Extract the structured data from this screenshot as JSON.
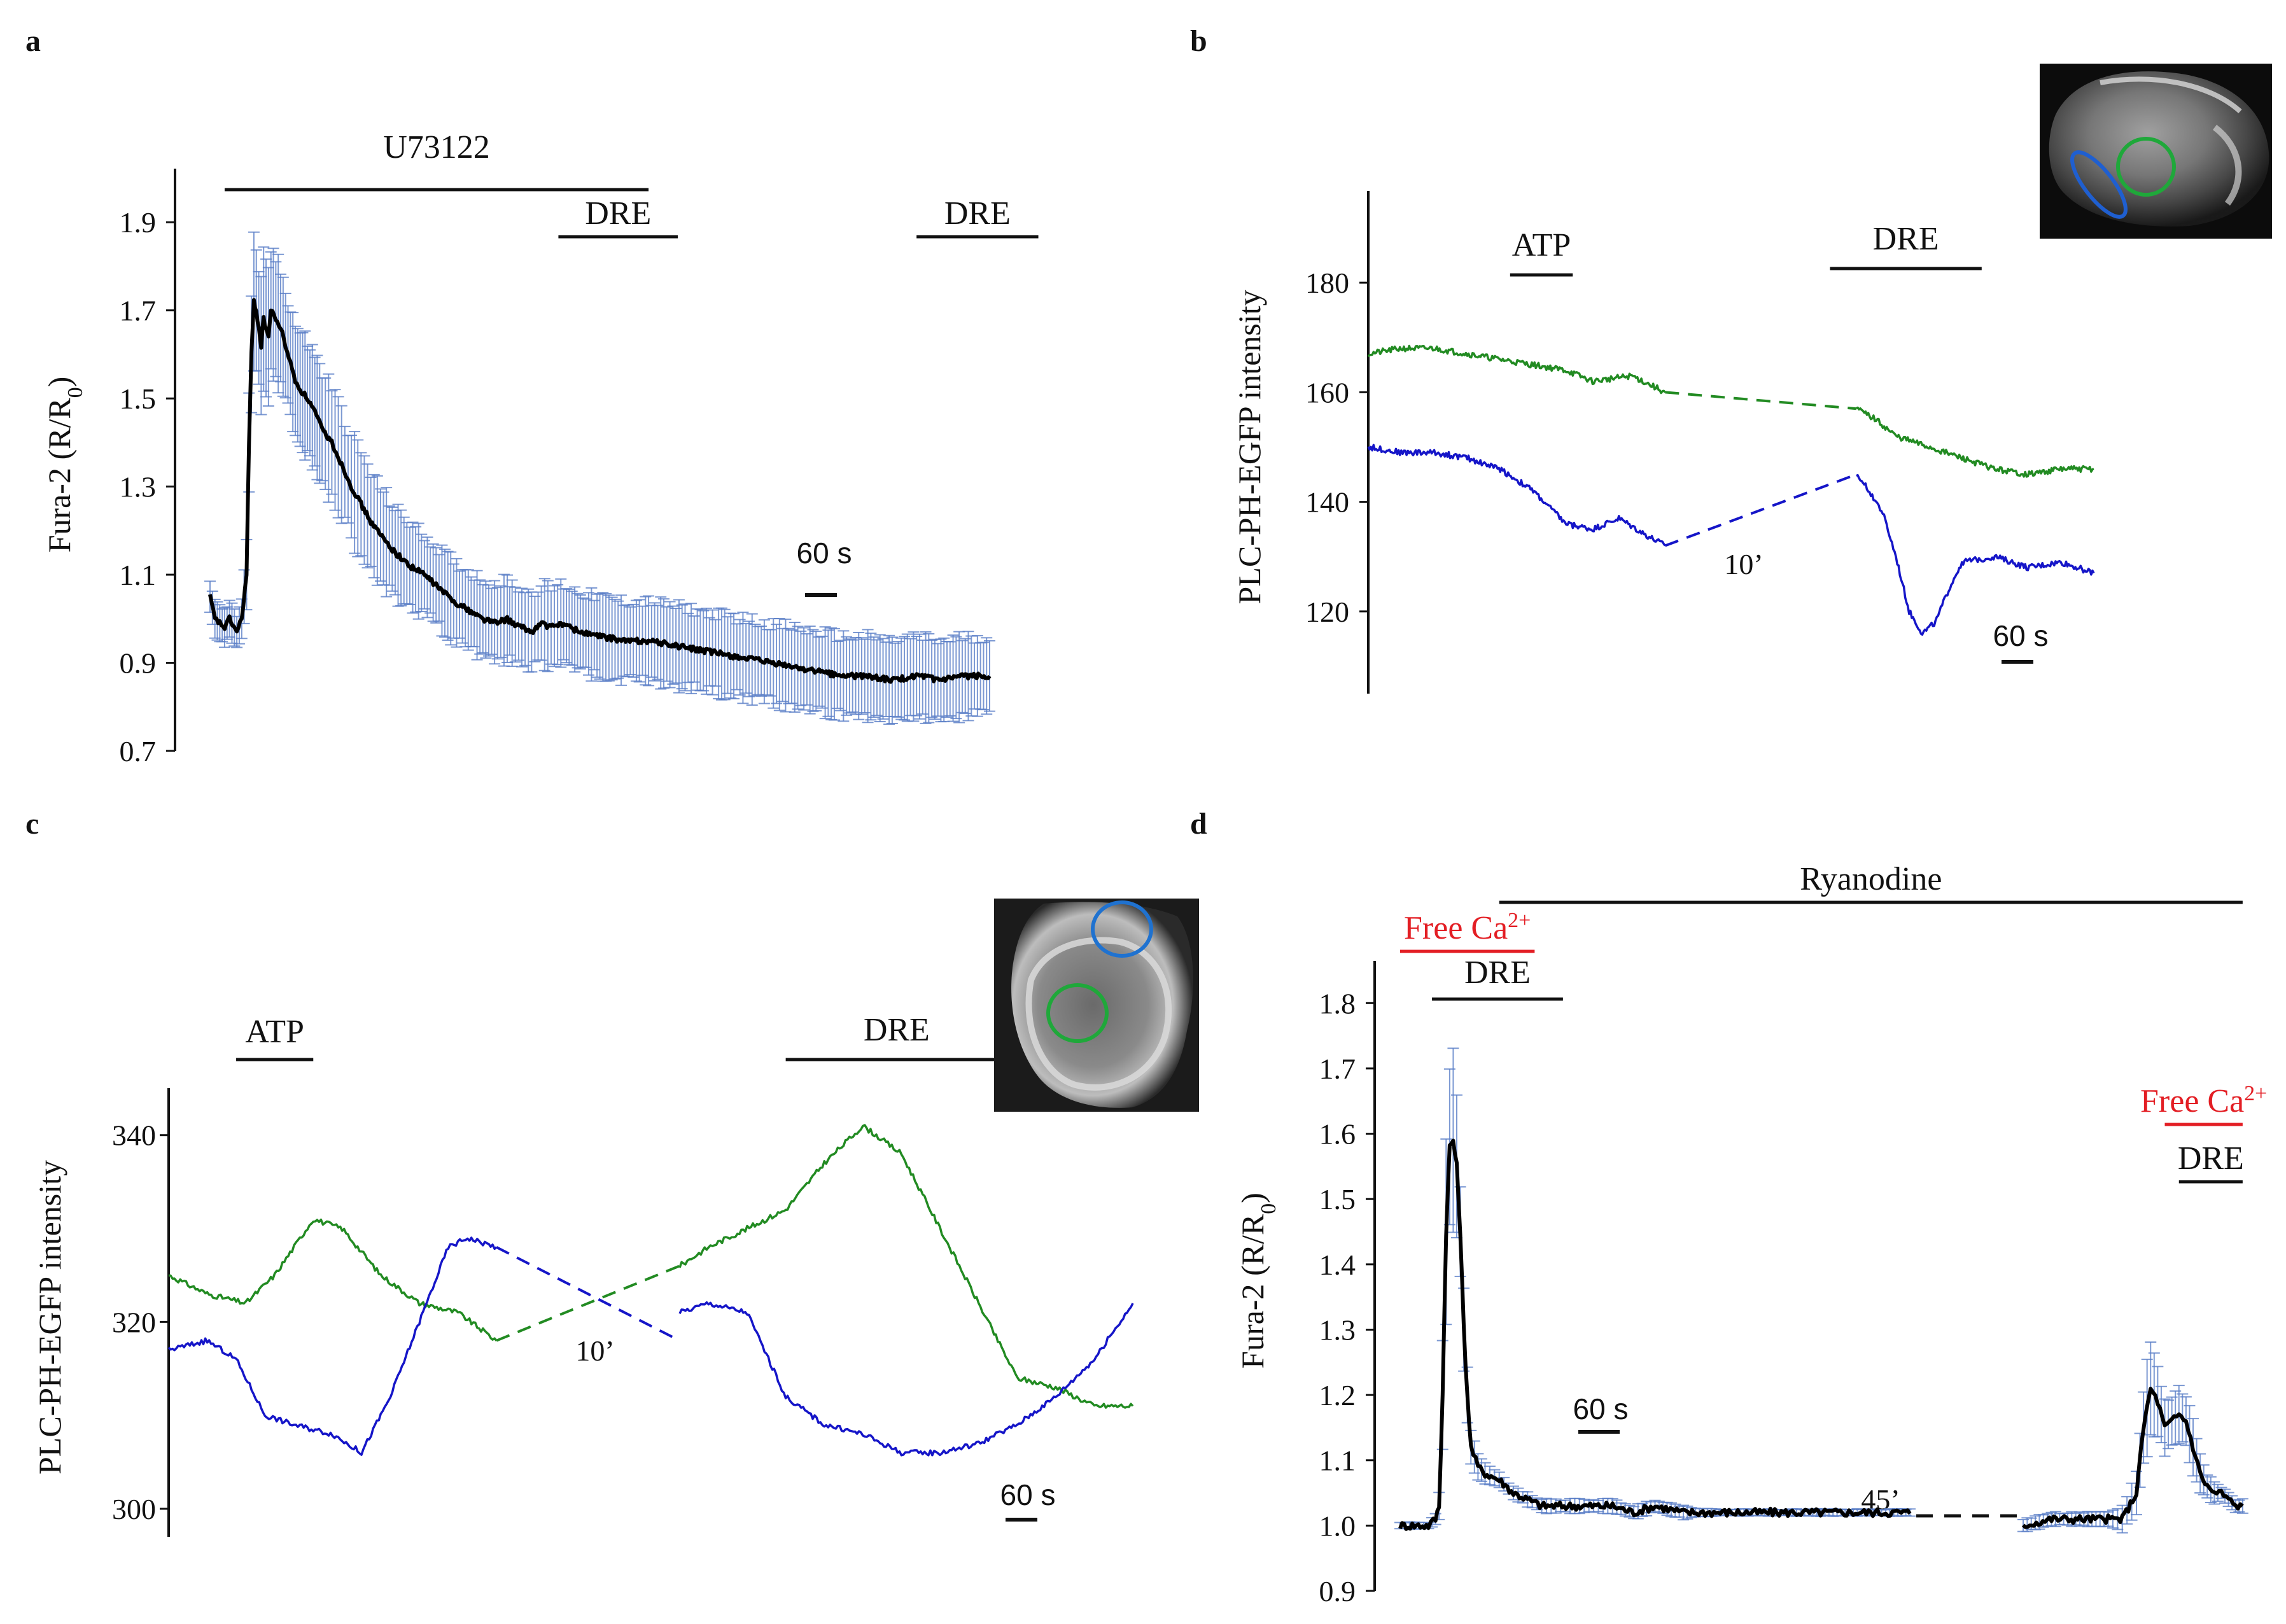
{
  "figure": {
    "panels": [
      "a",
      "b",
      "c",
      "d"
    ]
  },
  "chart_data": [
    {
      "panel": "a",
      "type": "line",
      "ylabel": "Fura-2 (R/R0)",
      "ylabel_main": "Fura-2 (R/R",
      "ylabel_sub": "0",
      "ylabel_close": ")",
      "yticks": [
        "1.9",
        "1.7",
        "1.5",
        "1.3",
        "1.1",
        "0.9",
        "0.7"
      ],
      "ylim": [
        0.7,
        2.0
      ],
      "x_seconds_range": [
        0,
        1600
      ],
      "scale_bar_label": "60 s",
      "drug_bars": [
        {
          "label": "U73122",
          "start": 30,
          "end": 900
        },
        {
          "label": "DRE",
          "start": 715,
          "end": 960
        },
        {
          "label": "DRE",
          "start": 1450,
          "end": 1700
        }
      ],
      "series": [
        {
          "name": "mean",
          "color": "#000000",
          "error_color": "#5b7fc7",
          "x": [
            0,
            10,
            20,
            30,
            40,
            55,
            65,
            75,
            80,
            85,
            90,
            95,
            100,
            105,
            110,
            115,
            120,
            125,
            135,
            145,
            155,
            165,
            175,
            185,
            200,
            215,
            230,
            250,
            270,
            290,
            310,
            330,
            350,
            380,
            410,
            440,
            470,
            500,
            530,
            560,
            590,
            610,
            620,
            640,
            660,
            680,
            700,
            720,
            760,
            800,
            850,
            900,
            950,
            1000,
            1050,
            1100,
            1150,
            1200,
            1250,
            1300,
            1350,
            1400,
            1450,
            1500,
            1550,
            1600
          ],
          "values": [
            1.05,
            1.0,
            0.99,
            0.98,
            1.0,
            0.97,
            1.0,
            1.1,
            1.4,
            1.6,
            1.72,
            1.7,
            1.66,
            1.62,
            1.68,
            1.66,
            1.64,
            1.7,
            1.68,
            1.66,
            1.62,
            1.58,
            1.54,
            1.52,
            1.5,
            1.47,
            1.43,
            1.4,
            1.35,
            1.3,
            1.26,
            1.22,
            1.19,
            1.15,
            1.12,
            1.1,
            1.07,
            1.04,
            1.02,
            1.0,
            0.99,
            1.0,
            0.99,
            0.98,
            0.97,
            0.99,
            0.98,
            0.99,
            0.97,
            0.96,
            0.95,
            0.95,
            0.94,
            0.93,
            0.92,
            0.91,
            0.9,
            0.89,
            0.88,
            0.87,
            0.87,
            0.86,
            0.87,
            0.86,
            0.87,
            0.87
          ],
          "errors": [
            0.04,
            0.04,
            0.04,
            0.04,
            0.04,
            0.04,
            0.05,
            0.08,
            0.12,
            0.13,
            0.14,
            0.14,
            0.14,
            0.14,
            0.14,
            0.14,
            0.14,
            0.14,
            0.14,
            0.13,
            0.13,
            0.13,
            0.13,
            0.13,
            0.13,
            0.13,
            0.13,
            0.13,
            0.12,
            0.12,
            0.12,
            0.11,
            0.11,
            0.1,
            0.1,
            0.09,
            0.09,
            0.09,
            0.09,
            0.09,
            0.09,
            0.09,
            0.09,
            0.09,
            0.09,
            0.09,
            0.09,
            0.09,
            0.09,
            0.09,
            0.09,
            0.09,
            0.09,
            0.09,
            0.09,
            0.09,
            0.09,
            0.09,
            0.09,
            0.09,
            0.09,
            0.09,
            0.09,
            0.09,
            0.09,
            0.09
          ]
        }
      ]
    },
    {
      "panel": "b",
      "type": "line",
      "ylabel": "PLC-PH-EGFP  intensity",
      "yticks": [
        "180",
        "160",
        "140",
        "120"
      ],
      "ylim": [
        105,
        195
      ],
      "x_seconds_range": [
        0,
        1000
      ],
      "scale_bar_label": "60 s",
      "gap_label": "10’",
      "drug_bars": [
        {
          "label": "ATP",
          "start": 215,
          "end": 310
        },
        {
          "label": "DRE",
          "start": 700,
          "end": 930
        }
      ],
      "series": [
        {
          "name": "green ROI",
          "color": "#228b22",
          "segments": [
            {
              "x": [
                0,
                50,
                100,
                150,
                200,
                250,
                300,
                340,
                400,
                450
              ],
              "y": [
                167,
                168,
                168,
                167,
                166,
                165,
                164,
                162,
                163,
                160
              ]
            },
            {
              "x": [
                740,
                770,
                800,
                850,
                900,
                950,
                1000,
                1050,
                1100
              ],
              "y": [
                157,
                155,
                152,
                150,
                148,
                146,
                145,
                146,
                146
              ]
            }
          ],
          "gap": {
            "x": [
              450,
              740
            ],
            "y": [
              160,
              157
            ]
          }
        },
        {
          "name": "blue ROI",
          "color": "#1515c8",
          "segments": [
            {
              "x": [
                0,
                50,
                100,
                150,
                200,
                250,
                300,
                340,
                380,
                420,
                450
              ],
              "y": [
                150,
                149,
                149,
                148,
                146,
                142,
                136,
                135,
                137,
                134,
                132
              ]
            },
            {
              "x": [
                740,
                760,
                780,
                800,
                820,
                840,
                860,
                880,
                900,
                950,
                1000,
                1050,
                1100
              ],
              "y": [
                145,
                142,
                138,
                130,
                120,
                116,
                118,
                124,
                129,
                130,
                128,
                129,
                127
              ]
            }
          ],
          "gap": {
            "x": [
              450,
              740
            ],
            "y": [
              132,
              145
            ]
          }
        }
      ]
    },
    {
      "panel": "c",
      "type": "line",
      "ylabel": "PLC-PH-EGFP  intensity",
      "yticks": [
        "340",
        "320",
        "300"
      ],
      "ylim": [
        297,
        344
      ],
      "x_seconds_range": [
        0,
        1000
      ],
      "scale_bar_label": "60 s",
      "gap_label": "10’",
      "drug_bars": [
        {
          "label": "ATP",
          "start": 70,
          "end": 150
        },
        {
          "label": "DRE",
          "start": 640,
          "end": 870
        }
      ],
      "series": [
        {
          "name": "green ROI",
          "color": "#228b22",
          "segments": [
            {
              "x": [
                0,
                40,
                80,
                110,
                150,
                180,
                220,
                260,
                300,
                340
              ],
              "y": [
                325,
                323,
                322,
                325,
                331,
                330,
                325,
                322,
                321,
                318
              ]
            },
            {
              "x": [
                530,
                560,
                600,
                640,
                680,
                720,
                760,
                800,
                840,
                880,
                920,
                960,
                1000
              ],
              "y": [
                326,
                328,
                330,
                332,
                337,
                341,
                338,
                330,
                322,
                314,
                313,
                311,
                311
              ]
            }
          ],
          "gap": {
            "x": [
              340,
              530
            ],
            "y": [
              318,
              326
            ]
          }
        },
        {
          "name": "blue ROI",
          "color": "#1515c8",
          "segments": [
            {
              "x": [
                0,
                40,
                70,
                100,
                130,
                170,
                200,
                230,
                260,
                290,
                310,
                340
              ],
              "y": [
                317,
                318,
                316,
                310,
                309,
                308,
                306,
                312,
                320,
                328,
                329,
                328
              ]
            },
            {
              "x": [
                530,
                560,
                600,
                640,
                680,
                720,
                760,
                800,
                840,
                880,
                920,
                960,
                1000
              ],
              "y": [
                321,
                322,
                321,
                312,
                309,
                308,
                306,
                306,
                307,
                309,
                312,
                316,
                322
              ]
            }
          ],
          "gap": {
            "x": [
              340,
              530
            ],
            "y": [
              328,
              318
            ]
          }
        }
      ]
    },
    {
      "panel": "d",
      "type": "line",
      "ylabel": "Fura-2 (R/R0)",
      "ylabel_main": "Fura-2 (R/R",
      "ylabel_sub": "0",
      "ylabel_close": ")",
      "yticks": [
        "1.8",
        "1.7",
        "1.6",
        "1.5",
        "1.4",
        "1.3",
        "1.2",
        "1.1",
        "1.0",
        "0.9"
      ],
      "ylim": [
        0.9,
        1.85
      ],
      "x_seconds_range": [
        0,
        1200
      ],
      "scale_bar_label": "60 s",
      "gap_label": "45’",
      "drug_bars": [
        {
          "label": "Ryanodine",
          "start": 140,
          "end": 1190
        },
        {
          "label": "Free Ca",
          "superscript": "2+",
          "start": 0,
          "end": 190,
          "color": "#e31e24"
        },
        {
          "label": "DRE",
          "start": 45,
          "end": 230
        },
        {
          "label": "Free Ca",
          "superscript": "2+",
          "start": 1080,
          "end": 1190,
          "color": "#e31e24"
        },
        {
          "label": "DRE",
          "start": 1100,
          "end": 1190
        }
      ],
      "series": [
        {
          "name": "mean",
          "color": "#000000",
          "error_color": "#5b7fc7",
          "x": [
            0,
            20,
            40,
            50,
            55,
            60,
            65,
            70,
            75,
            80,
            85,
            90,
            95,
            100,
            110,
            120,
            140,
            160,
            180,
            200,
            220,
            240,
            260,
            280,
            300,
            330,
            360,
            400,
            440,
            480,
            520,
            560,
            600,
            640,
            680,
            720,
            760,
            800,
            840,
            880,
            920,
            960,
            1000,
            1020,
            1040,
            1050,
            1060,
            1070,
            1080,
            1090,
            1100,
            1110,
            1120,
            1130,
            1140,
            1150,
            1160,
            1170,
            1180,
            1190
          ],
          "values": [
            1.0,
            1.0,
            1.0,
            1.01,
            1.03,
            1.2,
            1.45,
            1.58,
            1.59,
            1.55,
            1.45,
            1.3,
            1.2,
            1.12,
            1.09,
            1.08,
            1.07,
            1.05,
            1.04,
            1.03,
            1.03,
            1.03,
            1.03,
            1.03,
            1.03,
            1.02,
            1.03,
            1.02,
            1.02,
            1.02,
            1.02,
            1.02,
            1.02,
            1.02,
            1.02,
            1.02,
            1.03,
            1.03,
            1.02,
            1.0,
            1.01,
            1.01,
            1.01,
            1.01,
            1.05,
            1.15,
            1.21,
            1.19,
            1.15,
            1.16,
            1.17,
            1.16,
            1.12,
            1.08,
            1.06,
            1.05,
            1.05,
            1.04,
            1.03,
            1.03
          ],
          "errors": [
            0.005,
            0.005,
            0.005,
            0.01,
            0.02,
            0.1,
            0.15,
            0.14,
            0.12,
            0.1,
            0.08,
            0.06,
            0.04,
            0.03,
            0.02,
            0.015,
            0.01,
            0.01,
            0.01,
            0.01,
            0.01,
            0.01,
            0.01,
            0.01,
            0.01,
            0.01,
            0.01,
            0.01,
            0.005,
            0.005,
            0.005,
            0.005,
            0.005,
            0.005,
            0.005,
            0.005,
            0.005,
            0.005,
            0.005,
            0.01,
            0.01,
            0.01,
            0.01,
            0.02,
            0.03,
            0.06,
            0.08,
            0.05,
            0.04,
            0.04,
            0.04,
            0.04,
            0.04,
            0.03,
            0.02,
            0.02,
            0.01,
            0.01,
            0.01,
            0.01
          ]
        }
      ]
    }
  ],
  "insets": {
    "b_inset": {
      "rois": [
        "blue ROI",
        "green ROI"
      ]
    },
    "c_inset": {
      "rois": [
        "blue ROI",
        "green ROI"
      ]
    }
  }
}
